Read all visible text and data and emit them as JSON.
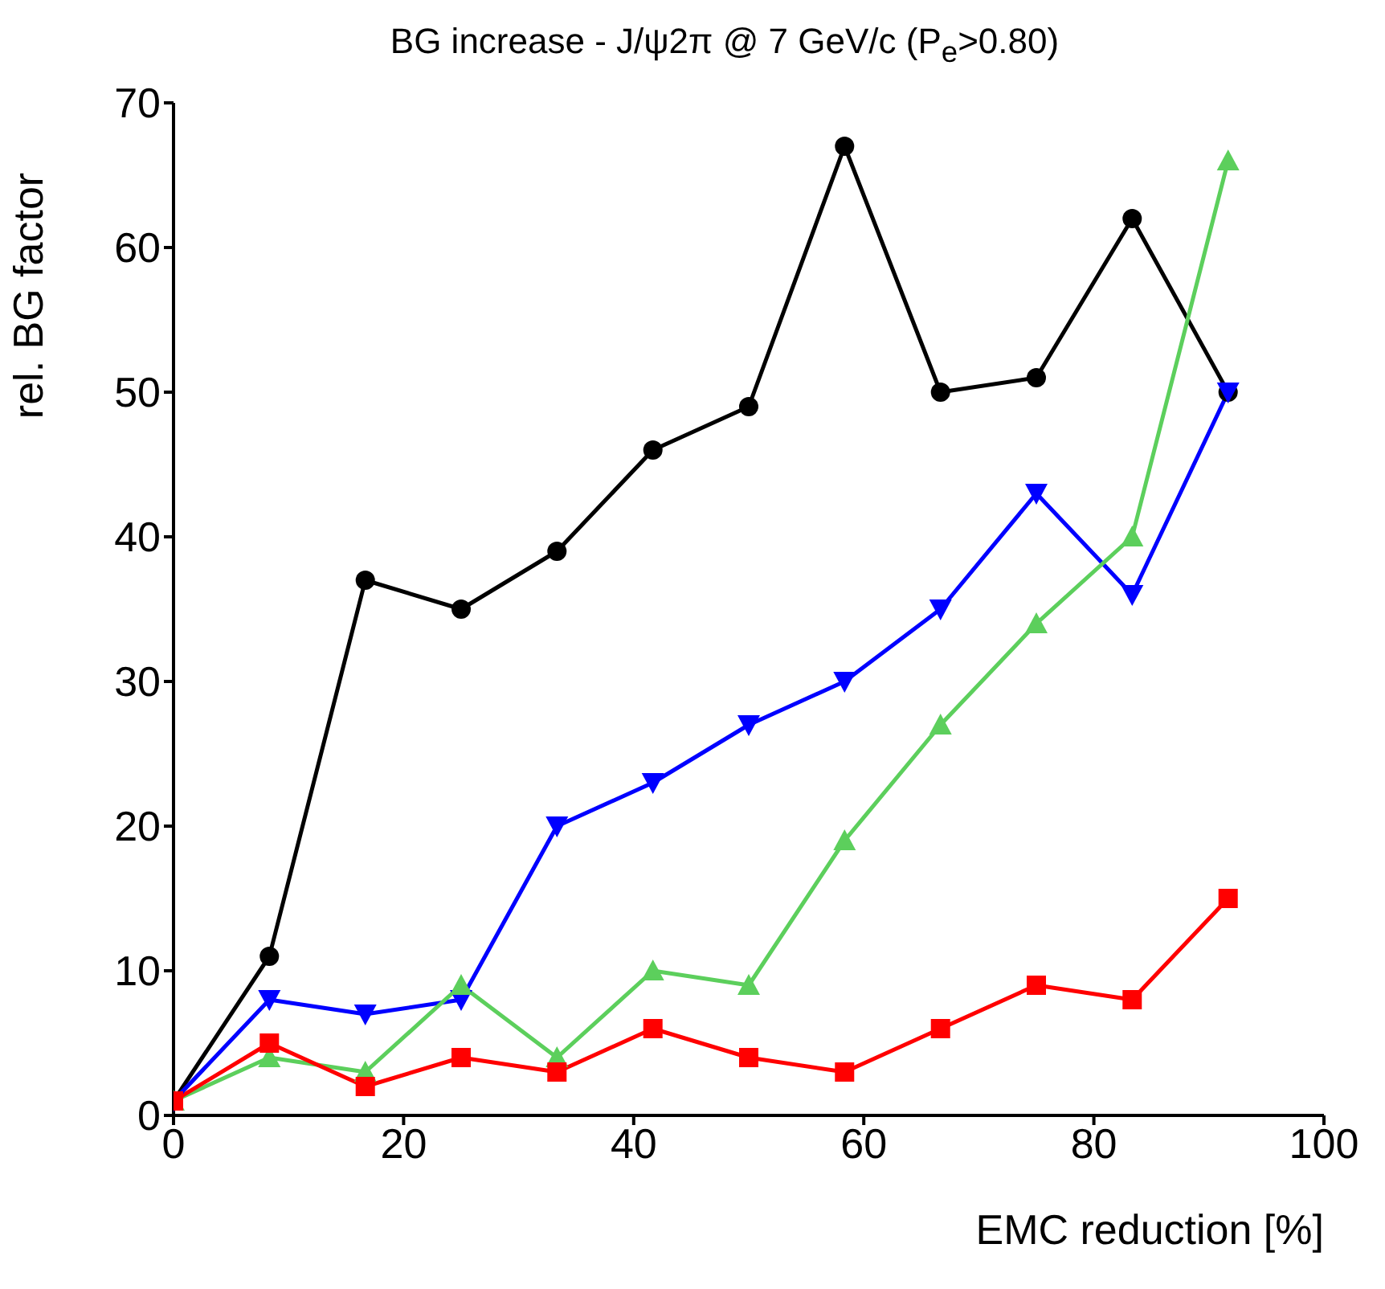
{
  "chart_data": {
    "type": "line",
    "title": "BG increase - J/ψ2π @ 7 GeV/c (P$_{e}$>0.80)",
    "xlabel": "EMC reduction [%]",
    "ylabel": "rel. BG factor",
    "x": [
      0,
      8.33,
      16.67,
      25,
      33.33,
      41.67,
      50,
      58.33,
      66.67,
      75,
      83.33,
      91.67
    ],
    "series": [
      {
        "color": "#000000",
        "marker": "circle",
        "values": [
          1,
          11,
          37,
          35,
          39,
          46,
          49,
          67,
          50,
          51,
          62,
          50
        ]
      },
      {
        "color": "#0000ff",
        "marker": "triangle-down",
        "values": [
          1,
          8,
          7,
          8,
          20,
          23,
          27,
          30,
          35,
          43,
          36,
          50
        ]
      },
      {
        "color": "#5ccf5c",
        "marker": "triangle",
        "values": [
          1,
          4,
          3,
          9,
          4,
          10,
          9,
          19,
          27,
          34,
          40,
          66
        ]
      },
      {
        "color": "#ff0000",
        "marker": "square",
        "values": [
          1,
          5,
          2,
          4,
          3,
          6,
          4,
          3,
          6,
          9,
          8,
          15
        ]
      }
    ],
    "xlim": [
      0,
      100
    ],
    "xticks": [
      0,
      20,
      40,
      60,
      80,
      100
    ],
    "ylim": [
      0,
      70
    ],
    "yticks": [
      0,
      10,
      20,
      30,
      40,
      50,
      60,
      70
    ],
    "line_style": "solid"
  }
}
